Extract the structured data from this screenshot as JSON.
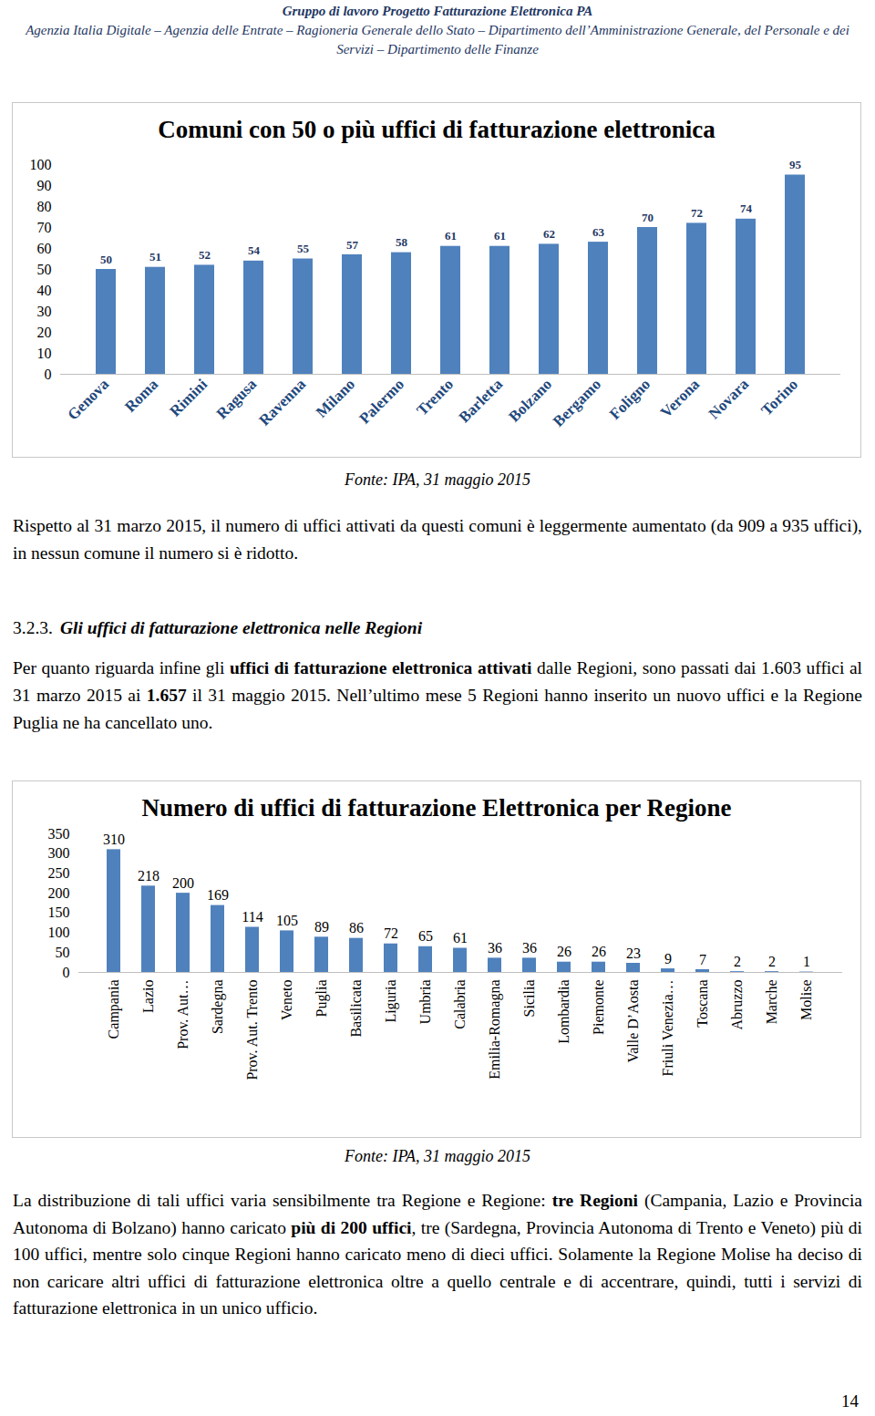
{
  "header": {
    "title": "Gruppo di lavoro Progetto Fatturazione Elettronica PA",
    "subtitle": "Agenzia Italia Digitale – Agenzia delle Entrate – Ragioneria Generale dello Stato – Dipartimento dell’Amministrazione Generale, del Personale e dei Servizi – Dipartimento delle Finanze"
  },
  "chart_data": [
    {
      "type": "bar",
      "title": "Comuni con 50 o più uffici di fatturazione elettronica",
      "categories": [
        "Genova",
        "Roma",
        "Rimini",
        "Ragusa",
        "Ravenna",
        "Milano",
        "Palermo",
        "Trento",
        "Barletta",
        "Bolzano",
        "Bergamo",
        "Foligno",
        "Verona",
        "Novara",
        "Torino"
      ],
      "values": [
        50,
        51,
        52,
        54,
        55,
        57,
        58,
        61,
        61,
        62,
        63,
        70,
        72,
        74,
        95
      ],
      "color": "#4f81bd",
      "ylim": [
        0,
        100
      ],
      "yticks": [
        0,
        10,
        20,
        30,
        40,
        50,
        60,
        70,
        80,
        90,
        100
      ],
      "grid": false,
      "data_labels": true,
      "annotations": [
        "Fonte: IPA, 31 maggio 2015"
      ]
    },
    {
      "type": "bar",
      "title": "Numero di uffici di fatturazione Elettronica per Regione",
      "categories": [
        "Campania",
        "Lazio",
        "Prov. Aut…",
        "Sardegna",
        "Prov. Aut. Trento",
        "Veneto",
        "Puglia",
        "Basilicata",
        "Liguria",
        "Umbria",
        "Calabria",
        "Emilia-Romagna",
        "Sicilia",
        "Lombardia",
        "Piemonte",
        "Valle D’Aosta",
        "Friuli Venezia…",
        "Toscana",
        "Abruzzo",
        "Marche",
        "Molise"
      ],
      "values": [
        310,
        218,
        200,
        169,
        114,
        105,
        89,
        86,
        72,
        65,
        61,
        36,
        36,
        26,
        26,
        23,
        9,
        7,
        2,
        2,
        1
      ],
      "color": "#4f81bd",
      "ylim": [
        0,
        350
      ],
      "yticks": [
        0,
        50,
        100,
        150,
        200,
        250,
        300,
        350
      ],
      "grid": false,
      "data_labels": true,
      "annotations": [
        "Fonte: IPA, 31 maggio 2015"
      ]
    }
  ],
  "paragraphs": [
    [
      {
        "text": "Rispetto al 31 marzo 2015, il numero di uffici attivati da questi comuni è leggermente aumentato (da 909 a 935 uffici), in nessun comune il numero si è ridotto."
      }
    ],
    [
      {
        "text": "Per quanto riguarda infine gli "
      },
      {
        "text": "uffici di fatturazione elettronica attivati",
        "bold": true
      },
      {
        "text": " dalle Regioni, sono passati dai 1.603 uffici al 31 marzo 2015 ai "
      },
      {
        "text": "1.657",
        "bold": true
      },
      {
        "text": " il 31 maggio 2015. Nell’ultimo mese 5 Regioni hanno inserito un nuovo uffici e la Regione Puglia ne ha cancellato uno."
      }
    ],
    [
      {
        "text": "La distribuzione di tali uffici varia sensibilmente tra Regione e Regione: "
      },
      {
        "text": "tre Regioni",
        "bold": true
      },
      {
        "text": " (Campania, Lazio e Provincia Autonoma di Bolzano) hanno caricato "
      },
      {
        "text": "più di 200 uffici",
        "bold": true
      },
      {
        "text": ", tre (Sardegna, Provincia Autonoma di Trento e Veneto) più di 100 uffici, mentre solo cinque Regioni hanno caricato meno di dieci uffici. Solamente la Regione Molise ha deciso di non caricare altri uffici di fatturazione elettronica oltre a quello centrale e di accentrare, quindi,  tutti i servizi di fatturazione elettronica in un unico ufficio."
      }
    ]
  ],
  "heading": {
    "number": "3.2.3.",
    "title": "Gli uffici di fatturazione elettronica nelle Regioni"
  },
  "page_number": 14
}
